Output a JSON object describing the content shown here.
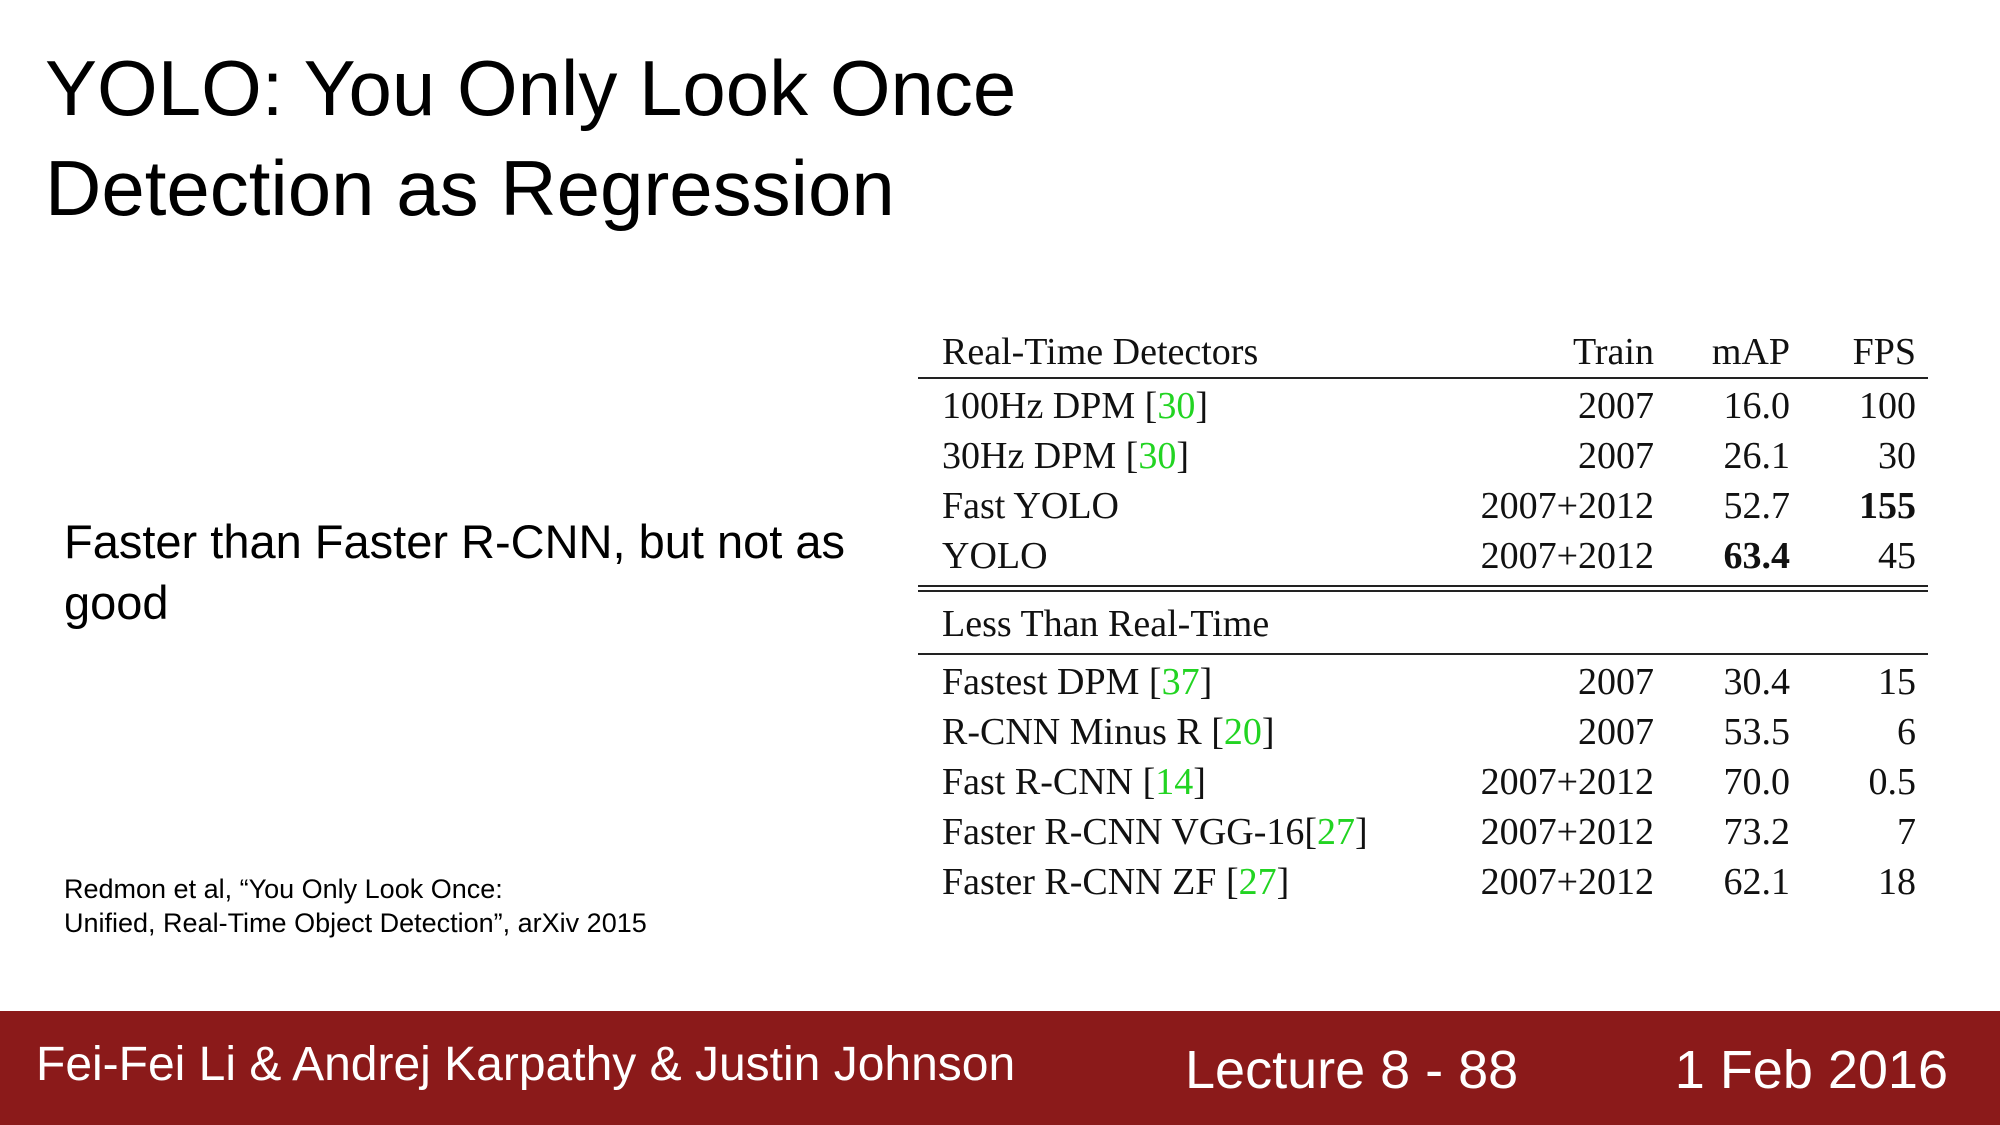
{
  "slide": {
    "title_line1": "YOLO: You Only Look Once",
    "title_line2": "Detection as Regression",
    "body_text": "Faster than Faster R-CNN, but not as good",
    "citation_line1": "Redmon et al, “You Only Look Once:",
    "citation_line2": "Unified, Real-Time Object Detection”, arXiv 2015"
  },
  "table": {
    "headers": {
      "name": "Real-Time Detectors",
      "train": "Train",
      "map": "mAP",
      "fps": "FPS"
    },
    "real_time": [
      {
        "name": "100Hz DPM [",
        "ref": "30",
        "close": "]",
        "train": "2007",
        "map": "16.0",
        "fps": "100"
      },
      {
        "name": "30Hz DPM [",
        "ref": "30",
        "close": "]",
        "train": "2007",
        "map": "26.1",
        "fps": "30"
      },
      {
        "name": "Fast YOLO",
        "ref": "",
        "close": "",
        "train": "2007+2012",
        "map": "52.7",
        "fps": "155"
      },
      {
        "name": "YOLO",
        "ref": "",
        "close": "",
        "train": "2007+2012",
        "map": "63.4",
        "fps": "45"
      }
    ],
    "section2_label": "Less Than Real-Time",
    "less_than_real_time": [
      {
        "name": "Fastest DPM [",
        "ref": "37",
        "close": "]",
        "train": "2007",
        "map": "30.4",
        "fps": "15"
      },
      {
        "name": "R-CNN Minus R [",
        "ref": "20",
        "close": "]",
        "train": "2007",
        "map": "53.5",
        "fps": "6"
      },
      {
        "name": "Fast R-CNN [",
        "ref": "14",
        "close": "]",
        "train": "2007+2012",
        "map": "70.0",
        "fps": "0.5"
      },
      {
        "name": "Faster R-CNN VGG-16[",
        "ref": "27",
        "close": "]",
        "train": "2007+2012",
        "map": "73.2",
        "fps": "7"
      },
      {
        "name": "Faster R-CNN ZF [",
        "ref": "27",
        "close": "]",
        "train": "2007+2012",
        "map": "62.1",
        "fps": "18"
      }
    ],
    "ref_color": "#22d422"
  },
  "footer": {
    "authors": "Fei-Fei Li & Andrej Karpathy & Justin Johnson",
    "lecture": "Lecture 8 - 88",
    "date": "1 Feb 2016",
    "background_color": "#8b1a1a"
  }
}
